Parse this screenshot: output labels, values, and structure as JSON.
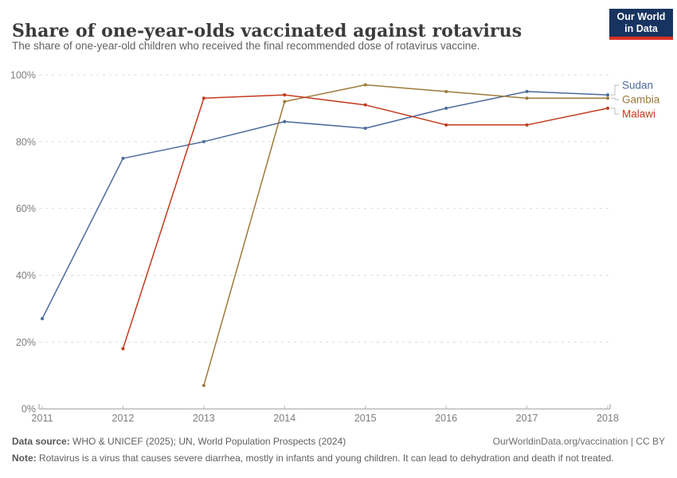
{
  "header": {
    "title": "Share of one-year-olds vaccinated against rotavirus",
    "subtitle": "The share of one-year-old children who received the final recommended dose of rotavirus vaccine."
  },
  "logo": {
    "line1": "Our World",
    "line2": "in Data"
  },
  "chart_data": {
    "type": "line",
    "title": "Share of one-year-olds vaccinated against rotavirus",
    "x": [
      2011,
      2012,
      2013,
      2014,
      2015,
      2016,
      2017,
      2018
    ],
    "series": [
      {
        "name": "Sudan",
        "color": "#4C6A9C",
        "values": [
          27,
          75,
          80,
          86,
          84,
          90,
          95,
          94
        ]
      },
      {
        "name": "Gambia",
        "color": "#9D7A39",
        "values": [
          null,
          null,
          7,
          92,
          97,
          95,
          93,
          93
        ]
      },
      {
        "name": "Malawi",
        "color": "#C23A1D",
        "values": [
          null,
          18,
          93,
          94,
          91,
          85,
          85,
          90
        ]
      }
    ],
    "ylim": [
      0,
      100
    ],
    "yticks": [
      0,
      20,
      40,
      60,
      80,
      100
    ],
    "ytick_suffix": "%",
    "grid": "horizontal-dashed",
    "legend_position": "right",
    "colors": {
      "gridline": "#dcdcdc",
      "axis": "#9e9e9e",
      "tick": "#b5b5b5",
      "tick_label": "#7d7d7d",
      "legend_connector": "#bdbdbd"
    }
  },
  "footer": {
    "datasource_label": "Data source:",
    "datasource_text": " WHO & UNICEF (2025); UN, World Population Prospects (2024)",
    "license_text": "OurWorldinData.org/vaccination | CC BY",
    "note_label": "Note:",
    "note_text": " Rotavirus is a virus that causes severe diarrhea, mostly in infants and young children. It can lead to dehydration and death if not treated."
  }
}
